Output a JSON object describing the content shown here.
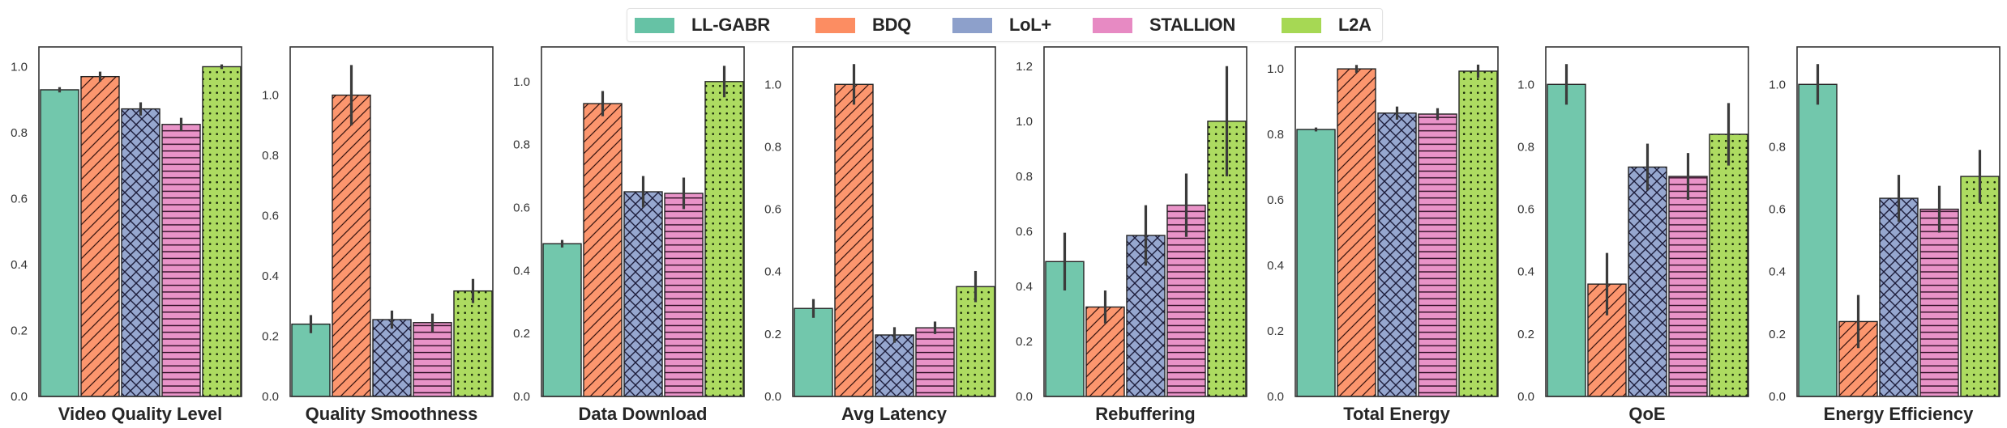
{
  "legend": {
    "items": [
      {
        "label": "LL-GABR",
        "color": "#66c2a5"
      },
      {
        "label": "BDQ",
        "color": "#fc8d62"
      },
      {
        "label": "LoL+",
        "color": "#8da0cb"
      },
      {
        "label": "STALLION",
        "color": "#e78ac3"
      },
      {
        "label": "L2A",
        "color": "#a6d854"
      }
    ]
  },
  "chart_data": {
    "type": "bar",
    "layout": "8 side-by-side subplots, shared legend at top-center",
    "series_names": [
      "LL-GABR",
      "BDQ",
      "LoL+",
      "STALLION",
      "L2A"
    ],
    "series_colors": [
      "#66c2a5",
      "#fc8d62",
      "#8da0cb",
      "#e78ac3",
      "#a6d854"
    ],
    "series_hatches": [
      "none",
      "diagonal",
      "crosshatch",
      "horizontal",
      "dots"
    ],
    "legend_position": "top-center",
    "grid": false,
    "panels": [
      {
        "title": "Video Quality Level",
        "ylim": [
          0,
          1.06
        ],
        "yticks": [
          "0.0",
          "0.2",
          "0.4",
          "0.6",
          "0.8",
          "1.0"
        ],
        "ytick_values": [
          0,
          0.2,
          0.4,
          0.6,
          0.8,
          1.0
        ],
        "values": [
          0.93,
          0.97,
          0.872,
          0.825,
          1.0
        ],
        "errors": [
          0.008,
          0.015,
          0.02,
          0.02,
          0.007
        ]
      },
      {
        "title": "Quality Smoothness",
        "ylim": [
          0,
          1.16
        ],
        "yticks": [
          "0.0",
          "0.2",
          "0.4",
          "0.6",
          "0.8",
          "1.0"
        ],
        "ytick_values": [
          0,
          0.2,
          0.4,
          0.6,
          0.8,
          1.0
        ],
        "values": [
          0.24,
          1.0,
          0.255,
          0.245,
          0.35
        ],
        "errors": [
          0.03,
          0.1,
          0.03,
          0.03,
          0.04
        ]
      },
      {
        "title": "Data Download",
        "ylim": [
          0,
          1.11
        ],
        "yticks": [
          "0.0",
          "0.2",
          "0.4",
          "0.6",
          "0.8",
          "1.0"
        ],
        "ytick_values": [
          0,
          0.2,
          0.4,
          0.6,
          0.8,
          1.0
        ],
        "values": [
          0.485,
          0.93,
          0.65,
          0.645,
          1.0
        ],
        "errors": [
          0.012,
          0.04,
          0.05,
          0.05,
          0.05
        ]
      },
      {
        "title": "Avg Latency",
        "ylim": [
          0,
          1.12
        ],
        "yticks": [
          "0.0",
          "0.2",
          "0.4",
          "0.6",
          "0.8",
          "1.0"
        ],
        "ytick_values": [
          0,
          0.2,
          0.4,
          0.6,
          0.8,
          1.0
        ],
        "values": [
          0.282,
          1.0,
          0.197,
          0.22,
          0.352
        ],
        "errors": [
          0.03,
          0.065,
          0.025,
          0.02,
          0.05
        ]
      },
      {
        "title": "Rebuffering",
        "ylim": [
          0,
          1.27
        ],
        "yticks": [
          "0.0",
          "0.2",
          "0.4",
          "0.6",
          "0.8",
          "1.0",
          "1.2"
        ],
        "ytick_values": [
          0,
          0.2,
          0.4,
          0.6,
          0.8,
          1.0,
          1.2
        ],
        "values": [
          0.49,
          0.325,
          0.585,
          0.695,
          1.0
        ],
        "errors": [
          0.105,
          0.06,
          0.11,
          0.115,
          0.2
        ]
      },
      {
        "title": "Total Energy",
        "ylim": [
          0,
          1.067
        ],
        "yticks": [
          "0.0",
          "0.2",
          "0.4",
          "0.6",
          "0.8",
          "1.0"
        ],
        "ytick_values": [
          0,
          0.2,
          0.4,
          0.6,
          0.8,
          1.0
        ],
        "values": [
          0.815,
          1.0,
          0.865,
          0.862,
          0.993
        ],
        "errors": [
          0.006,
          0.012,
          0.02,
          0.018,
          0.02
        ]
      },
      {
        "title": "QoE",
        "ylim": [
          0,
          1.12
        ],
        "yticks": [
          "0.0",
          "0.2",
          "0.4",
          "0.6",
          "0.8",
          "1.0"
        ],
        "ytick_values": [
          0,
          0.2,
          0.4,
          0.6,
          0.8,
          1.0
        ],
        "values": [
          1.0,
          0.36,
          0.735,
          0.705,
          0.84
        ],
        "errors": [
          0.065,
          0.1,
          0.075,
          0.075,
          0.1
        ]
      },
      {
        "title": "Energy Efficiency",
        "ylim": [
          0,
          1.12
        ],
        "yticks": [
          "0.0",
          "0.2",
          "0.4",
          "0.6",
          "0.8",
          "1.0"
        ],
        "ytick_values": [
          0,
          0.2,
          0.4,
          0.6,
          0.8,
          1.0
        ],
        "values": [
          1.0,
          0.24,
          0.635,
          0.6,
          0.705
        ],
        "errors": [
          0.065,
          0.085,
          0.075,
          0.075,
          0.085
        ]
      }
    ]
  }
}
